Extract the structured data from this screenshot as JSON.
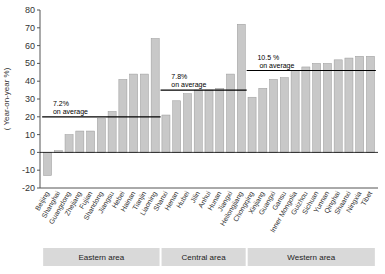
{
  "chart_data": {
    "type": "bar",
    "y_label": "( Year-on-year %)",
    "categories": [
      "Beijing",
      "Shanghai",
      "Guangdong",
      "Zhejiang",
      "Fujian",
      "Shandong",
      "Jiangsu",
      "Hebei",
      "Hainan",
      "Tianjin",
      "Liaoning",
      "Shanxi",
      "Henan",
      "Hubei",
      "Jilin",
      "Anhui",
      "Hunan",
      "Jiangxi",
      "Heilongjiang",
      "Chongqing",
      "Xinjiang",
      "Guangxi",
      "Gansu",
      "Inner Mongolia",
      "Guizhou",
      "Sichuan",
      "Yunnan",
      "Qinghai",
      "Shaanxi",
      "Ningxia",
      "Tibet"
    ],
    "values": [
      -13,
      1,
      10,
      12,
      12,
      19,
      23,
      41,
      44,
      44,
      64,
      21,
      29,
      33,
      35,
      35,
      36,
      44,
      72,
      31,
      36,
      41,
      42,
      46,
      48,
      50,
      50,
      52,
      53,
      54,
      54
    ],
    "color": "#c8c8c8",
    "ylim": [
      -20,
      80
    ],
    "yticks": [
      -20,
      -10,
      0,
      10,
      20,
      30,
      40,
      50,
      60,
      70,
      80
    ],
    "groups": [
      {
        "name": "Eastern area",
        "start": "Beijing",
        "end": "Liaoning",
        "average": 20,
        "annotation": "7.2%\non average"
      },
      {
        "name": "Central area",
        "start": "Shanxi",
        "end": "Heilongjiang",
        "average": 35,
        "annotation": "7.8%\non average"
      },
      {
        "name": "Western area",
        "start": "Chongqing",
        "end": "Tibet",
        "average": 46,
        "annotation": "10.5 %\n on average"
      }
    ]
  }
}
